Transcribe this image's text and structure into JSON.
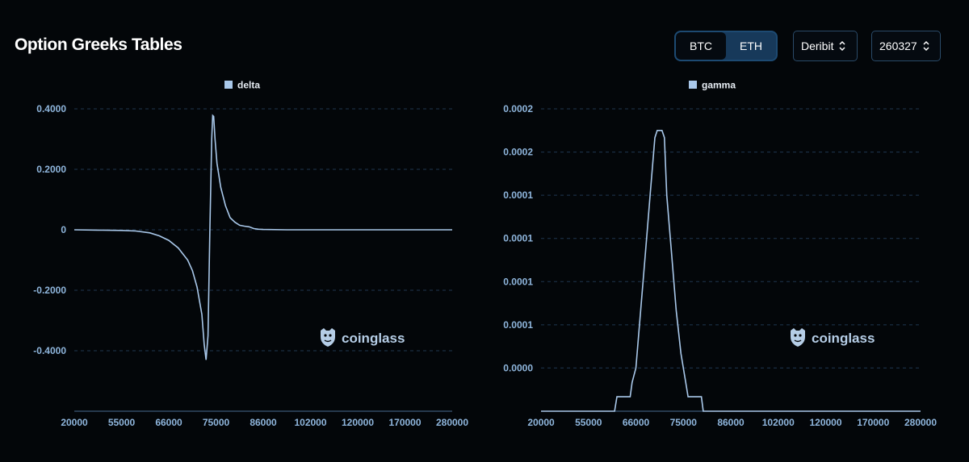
{
  "header": {
    "title": "Option Greeks Tables",
    "coin_toggle": [
      {
        "label": "BTC",
        "active": true
      },
      {
        "label": "ETH",
        "active": false
      }
    ],
    "exchange_select": {
      "value": "Deribit"
    },
    "expiry_select": {
      "value": "260327"
    }
  },
  "colors": {
    "accent": "#17395a",
    "line": "#a9c8ea",
    "grid": "#1f3650",
    "tick": "#8fb6dd",
    "background": "#030609"
  },
  "watermark": {
    "text": "coinglass",
    "icon": "coinglass-logo-icon"
  },
  "chart_data": [
    {
      "type": "line",
      "legend": "delta",
      "legend_position": "top-center",
      "grid": true,
      "x_labels": [
        "20000",
        "55000",
        "66000",
        "75000",
        "86000",
        "102000",
        "120000",
        "170000",
        "280000"
      ],
      "y_ticks": [
        {
          "value": 0.4,
          "label": "0.4000"
        },
        {
          "value": 0.2,
          "label": "0.2000"
        },
        {
          "value": 0,
          "label": "0"
        },
        {
          "value": -0.2,
          "label": "-0.2000"
        },
        {
          "value": -0.4,
          "label": "-0.4000"
        }
      ],
      "ylim": [
        -0.6,
        0.4
      ],
      "points": [
        [
          0.0,
          0
        ],
        [
          0.5,
          -0.001
        ],
        [
          1.0,
          -0.002
        ],
        [
          1.3,
          -0.004
        ],
        [
          1.6,
          -0.01
        ],
        [
          1.8,
          -0.02
        ],
        [
          2.0,
          -0.035
        ],
        [
          2.2,
          -0.06
        ],
        [
          2.4,
          -0.1
        ],
        [
          2.5,
          -0.135
        ],
        [
          2.6,
          -0.19
        ],
        [
          2.7,
          -0.28
        ],
        [
          2.75,
          -0.38
        ],
        [
          2.79,
          -0.43
        ],
        [
          2.83,
          -0.35
        ],
        [
          2.87,
          0.0
        ],
        [
          2.91,
          0.3
        ],
        [
          2.93,
          0.378
        ],
        [
          2.95,
          0.375
        ],
        [
          2.98,
          0.3
        ],
        [
          3.02,
          0.22
        ],
        [
          3.1,
          0.14
        ],
        [
          3.2,
          0.08
        ],
        [
          3.3,
          0.04
        ],
        [
          3.4,
          0.025
        ],
        [
          3.5,
          0.015
        ],
        [
          3.6,
          0.012
        ],
        [
          3.7,
          0.01
        ],
        [
          3.8,
          0.004
        ],
        [
          3.9,
          0.002
        ],
        [
          4.0,
          0.001
        ],
        [
          4.5,
          0
        ],
        [
          8.0,
          0
        ]
      ]
    },
    {
      "type": "line",
      "legend": "gamma",
      "legend_position": "top-center",
      "grid": true,
      "x_labels": [
        "20000",
        "55000",
        "66000",
        "75000",
        "86000",
        "102000",
        "120000",
        "170000",
        "280000"
      ],
      "y_ticks": [
        {
          "value": 0.0002,
          "label": "0.0002"
        },
        {
          "value": 0.00017,
          "label": "0.0002"
        },
        {
          "value": 0.00014,
          "label": "0.0001"
        },
        {
          "value": 0.00011,
          "label": "0.0001"
        },
        {
          "value": 8e-05,
          "label": "0.0001"
        },
        {
          "value": 5e-05,
          "label": "0.0001"
        },
        {
          "value": 2e-05,
          "label": "0.0000"
        }
      ],
      "ylim": [
        -1e-05,
        0.0002
      ],
      "points": [
        [
          0.0,
          -1e-05
        ],
        [
          1.55,
          -1e-05
        ],
        [
          1.6,
          0.0
        ],
        [
          1.88,
          0.0
        ],
        [
          1.92,
          1e-05
        ],
        [
          2.0,
          2e-05
        ],
        [
          2.1,
          6e-05
        ],
        [
          2.2,
          0.0001
        ],
        [
          2.3,
          0.00014
        ],
        [
          2.4,
          0.00018
        ],
        [
          2.45,
          0.000185
        ],
        [
          2.55,
          0.000185
        ],
        [
          2.6,
          0.00018
        ],
        [
          2.65,
          0.00014
        ],
        [
          2.75,
          0.0001
        ],
        [
          2.85,
          6e-05
        ],
        [
          2.95,
          3e-05
        ],
        [
          3.05,
          1e-05
        ],
        [
          3.1,
          0.0
        ],
        [
          3.38,
          0.0
        ],
        [
          3.42,
          -1e-05
        ],
        [
          8.0,
          -1e-05
        ]
      ]
    }
  ]
}
